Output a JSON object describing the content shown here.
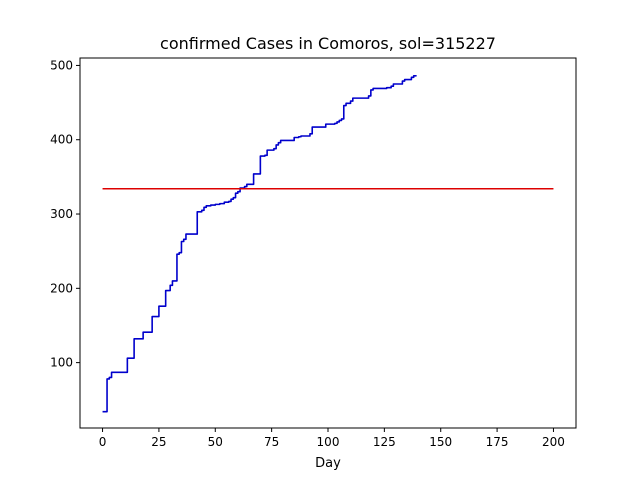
{
  "chart_data": {
    "type": "line",
    "title": "confirmed Cases in Comoros, sol=315227",
    "xlabel": "Day",
    "ylabel": "",
    "xlim": [
      -10,
      210
    ],
    "ylim": [
      12,
      510
    ],
    "xticks": [
      0,
      25,
      50,
      75,
      100,
      125,
      150,
      175,
      200
    ],
    "yticks": [
      100,
      200,
      300,
      400,
      500
    ],
    "grid": false,
    "legend": "none",
    "series": [
      {
        "color": "#0000cc",
        "style": "step",
        "x": [
          0,
          1,
          2,
          3,
          4,
          5,
          10,
          11,
          13,
          14,
          17,
          18,
          21,
          22,
          24,
          25,
          27,
          28,
          30,
          31,
          33,
          34,
          35,
          36,
          37,
          41,
          42,
          44,
          45,
          46,
          48,
          50,
          52,
          54,
          56,
          57,
          58,
          59,
          60,
          61,
          63,
          64,
          66,
          67,
          69,
          70,
          72,
          73,
          76,
          77,
          78,
          79,
          84,
          85,
          87,
          88,
          92,
          93,
          98,
          99,
          103,
          104,
          105,
          106,
          107,
          108,
          110,
          111,
          117,
          118,
          119,
          120,
          126,
          127,
          128,
          129,
          133,
          134,
          137,
          138,
          139
        ],
        "y": [
          34,
          34,
          78,
          80,
          87,
          87,
          87,
          106,
          106,
          132,
          132,
          141,
          141,
          162,
          162,
          176,
          176,
          197,
          204,
          210,
          246,
          248,
          263,
          266,
          273,
          273,
          303,
          305,
          309,
          311,
          312,
          313,
          314,
          316,
          317,
          320,
          322,
          328,
          330,
          335,
          337,
          340,
          340,
          354,
          354,
          378,
          379,
          386,
          388,
          393,
          396,
          399,
          399,
          403,
          404,
          405,
          408,
          417,
          417,
          421,
          422,
          424,
          426,
          428,
          446,
          449,
          452,
          456,
          456,
          459,
          467,
          469,
          470,
          470,
          472,
          475,
          479,
          481,
          484,
          486,
          487
        ]
      },
      {
        "color": "#dd0000",
        "style": "line",
        "x": [
          0,
          200
        ],
        "y": [
          334,
          334
        ]
      }
    ]
  }
}
